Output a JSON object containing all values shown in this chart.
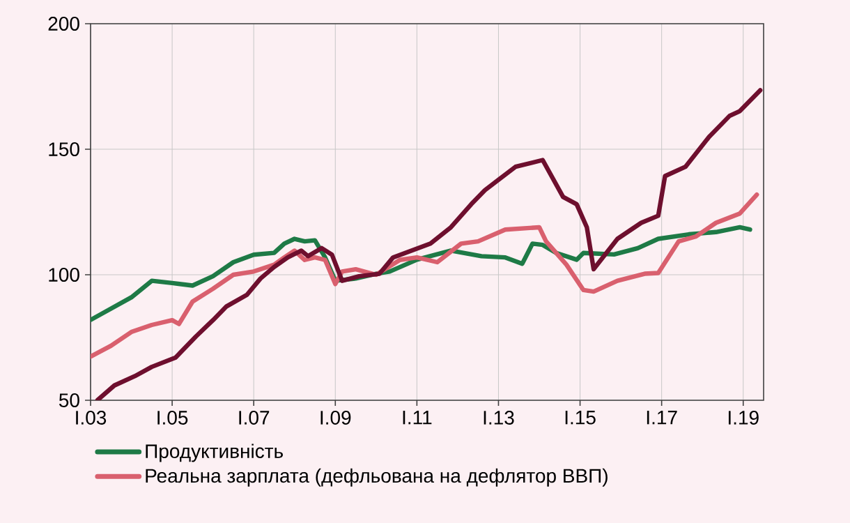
{
  "chart_data": {
    "type": "line",
    "xlim": [
      "2003-01",
      "2019-07"
    ],
    "ylim": [
      50,
      200
    ],
    "yticks": [
      50,
      100,
      150,
      200
    ],
    "xticks": [
      {
        "value": "2003-01",
        "label": "I.03"
      },
      {
        "value": "2005-01",
        "label": "I.05"
      },
      {
        "value": "2007-01",
        "label": "I.07"
      },
      {
        "value": "2009-01",
        "label": "I.09"
      },
      {
        "value": "2011-01",
        "label": "I.11"
      },
      {
        "value": "2013-01",
        "label": "I.13"
      },
      {
        "value": "2015-01",
        "label": "I.15"
      },
      {
        "value": "2017-01",
        "label": "I.17"
      },
      {
        "value": "2019-01",
        "label": "I.19"
      }
    ],
    "grid": true,
    "legend": "bottom",
    "marker": "none",
    "line_style": "solid",
    "series": [
      {
        "name": "Продуктивність",
        "color": "#1e7a46",
        "x": [
          "2003-01",
          "2003-07",
          "2004-01",
          "2004-07",
          "2005-01",
          "2005-07",
          "2006-01",
          "2006-07",
          "2007-01",
          "2007-07",
          "2007-10",
          "2008-01",
          "2008-04",
          "2008-07",
          "2008-10",
          "2009-01",
          "2009-07",
          "2010-01",
          "2010-05",
          "2011-01",
          "2011-11",
          "2012-08",
          "2013-03",
          "2013-08",
          "2013-11",
          "2014-02",
          "2014-06",
          "2014-12",
          "2015-02",
          "2015-11",
          "2016-06",
          "2016-12",
          "2017-09",
          "2018-05",
          "2018-12",
          "2019-03"
        ],
        "values": [
          82,
          86.5,
          91,
          97.6,
          96.7,
          95.7,
          99.4,
          105,
          108,
          108.7,
          112.4,
          114.3,
          113.3,
          113.7,
          106.9,
          97.6,
          98.5,
          100.4,
          101.3,
          106,
          109.6,
          107.4,
          106.9,
          104.4,
          112.4,
          111.9,
          108.7,
          106,
          108.7,
          108.1,
          110.6,
          114.3,
          116.1,
          117,
          118.9,
          118
        ]
      },
      {
        "name": "Реальна зарплата (дефльована на дефлятор ВВП)",
        "color": "#d9606e",
        "x": [
          "2003-01",
          "2003-07",
          "2004-01",
          "2004-07",
          "2005-01",
          "2005-03",
          "2005-07",
          "2006-01",
          "2006-07",
          "2007-01",
          "2007-07",
          "2007-10",
          "2008-01",
          "2008-04",
          "2008-07",
          "2008-10",
          "2009-01",
          "2009-03",
          "2009-07",
          "2010-01",
          "2010-08",
          "2011-01",
          "2011-07",
          "2012-02",
          "2012-07",
          "2013-03",
          "2014-01",
          "2014-03",
          "2014-09",
          "2015-02",
          "2015-05",
          "2015-12",
          "2016-08",
          "2016-12",
          "2017-06",
          "2017-11",
          "2018-05",
          "2018-12",
          "2019-05"
        ],
        "values": [
          67.4,
          71.7,
          77.2,
          80,
          81.9,
          80.4,
          89.3,
          94.4,
          100,
          101.3,
          104,
          106.9,
          109.6,
          105.9,
          106.9,
          105.9,
          96.3,
          101.3,
          102.2,
          100,
          105.9,
          106.9,
          105,
          112.4,
          113.3,
          118,
          118.9,
          113.3,
          104,
          93.9,
          93.3,
          97.6,
          100.4,
          100.7,
          113.3,
          115.2,
          120.7,
          124.4,
          131.9
        ]
      },
      {
        "color": "#6e0f2e",
        "x": [
          "2003-03",
          "2003-08",
          "2004-02",
          "2004-07",
          "2005-02",
          "2005-08",
          "2006-01",
          "2006-05",
          "2006-11",
          "2007-03",
          "2007-07",
          "2007-11",
          "2008-03",
          "2008-05",
          "2008-09",
          "2008-12",
          "2009-03",
          "2009-08",
          "2010-02",
          "2010-06",
          "2011-05",
          "2011-11",
          "2012-05",
          "2012-09",
          "2013-06",
          "2014-02",
          "2014-08",
          "2014-12",
          "2015-03",
          "2015-05",
          "2015-12",
          "2016-07",
          "2016-12",
          "2017-02",
          "2017-08",
          "2018-03",
          "2018-09",
          "2018-12",
          "2019-06"
        ],
        "values": [
          50,
          55.9,
          59.6,
          63.3,
          67,
          75.4,
          81.9,
          87.4,
          92,
          98.5,
          103.1,
          106.9,
          109.6,
          107.4,
          110.6,
          108,
          97.6,
          99.4,
          100.4,
          106.9,
          112.4,
          118.9,
          128.1,
          133.7,
          143,
          145.7,
          131,
          128.1,
          118.9,
          102.2,
          114.3,
          120.7,
          123.5,
          139.3,
          143,
          155,
          163.3,
          165.2,
          173.5
        ]
      }
    ]
  }
}
